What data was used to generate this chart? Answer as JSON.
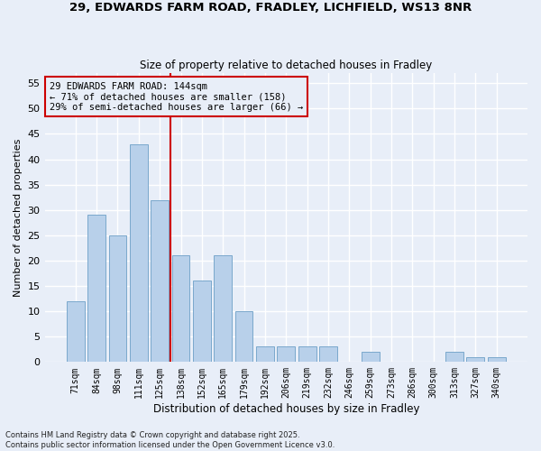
{
  "title_line1": "29, EDWARDS FARM ROAD, FRADLEY, LICHFIELD, WS13 8NR",
  "title_line2": "Size of property relative to detached houses in Fradley",
  "xlabel": "Distribution of detached houses by size in Fradley",
  "ylabel": "Number of detached properties",
  "bar_labels": [
    "71sqm",
    "84sqm",
    "98sqm",
    "111sqm",
    "125sqm",
    "138sqm",
    "152sqm",
    "165sqm",
    "179sqm",
    "192sqm",
    "206sqm",
    "219sqm",
    "232sqm",
    "246sqm",
    "259sqm",
    "273sqm",
    "286sqm",
    "300sqm",
    "313sqm",
    "327sqm",
    "340sqm"
  ],
  "bar_values": [
    12,
    29,
    25,
    43,
    32,
    21,
    16,
    21,
    10,
    3,
    3,
    3,
    3,
    0,
    2,
    0,
    0,
    0,
    2,
    1,
    1
  ],
  "bar_color": "#b8d0ea",
  "bar_edge_color": "#7aa8cc",
  "background_color": "#e8eef8",
  "grid_color": "#ffffff",
  "vline_color": "#cc0000",
  "vline_position": 4.5,
  "annotation_text": "29 EDWARDS FARM ROAD: 144sqm\n← 71% of detached houses are smaller (158)\n29% of semi-detached houses are larger (66) →",
  "annotation_box_edge_color": "#cc0000",
  "ylim": [
    0,
    57
  ],
  "yticks": [
    0,
    5,
    10,
    15,
    20,
    25,
    30,
    35,
    40,
    45,
    50,
    55
  ],
  "footer_text": "Contains HM Land Registry data © Crown copyright and database right 2025.\nContains public sector information licensed under the Open Government Licence v3.0."
}
